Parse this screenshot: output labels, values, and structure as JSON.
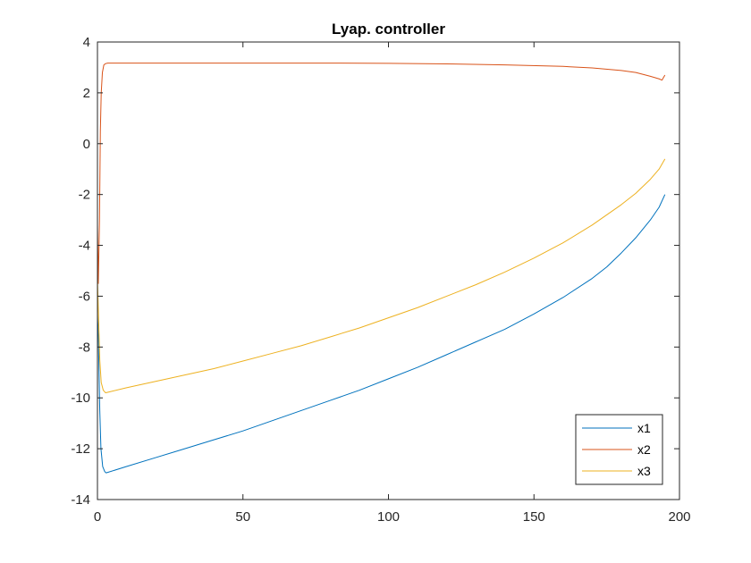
{
  "chart_data": {
    "type": "line",
    "title": "Lyap. controller",
    "xlabel": "",
    "ylabel": "",
    "xlim": [
      0,
      200
    ],
    "ylim": [
      -14,
      4
    ],
    "xticks": [
      0,
      50,
      100,
      150,
      200
    ],
    "yticks": [
      -14,
      -12,
      -10,
      -8,
      -6,
      -4,
      -2,
      0,
      2,
      4
    ],
    "xtick_labels": [
      "0",
      "50",
      "100",
      "150",
      "200"
    ],
    "ytick_labels": [
      "-14",
      "-12",
      "-10",
      "-8",
      "-6",
      "-4",
      "-2",
      "0",
      "2",
      "4"
    ],
    "grid": false,
    "legend_position": "bottom-right",
    "series": [
      {
        "name": "x1",
        "color": "#0072BD",
        "x": [
          0,
          0.3,
          0.8,
          1.2,
          1.8,
          2.5,
          3,
          10,
          20,
          30,
          40,
          50,
          60,
          70,
          80,
          90,
          100,
          110,
          120,
          130,
          140,
          150,
          160,
          170,
          175,
          180,
          185,
          190,
          193,
          195
        ],
        "y": [
          -6.7,
          -7.5,
          -10.5,
          -12.0,
          -12.7,
          -12.9,
          -12.95,
          -12.7,
          -12.35,
          -12.0,
          -11.65,
          -11.3,
          -10.9,
          -10.5,
          -10.1,
          -9.7,
          -9.25,
          -8.8,
          -8.3,
          -7.8,
          -7.3,
          -6.7,
          -6.05,
          -5.3,
          -4.85,
          -4.3,
          -3.7,
          -3.0,
          -2.5,
          -2.0
        ]
      },
      {
        "name": "x2",
        "color": "#D95319",
        "x": [
          0,
          0.3,
          0.7,
          1.0,
          1.3,
          1.7,
          2.2,
          2.8,
          3.5,
          10,
          30,
          50,
          80,
          100,
          120,
          140,
          160,
          170,
          180,
          185,
          190,
          193,
          194,
          195
        ],
        "y": [
          -3.2,
          -5.5,
          -3.0,
          0.5,
          2.0,
          2.8,
          3.1,
          3.15,
          3.17,
          3.17,
          3.17,
          3.17,
          3.17,
          3.16,
          3.14,
          3.1,
          3.04,
          2.98,
          2.88,
          2.8,
          2.65,
          2.55,
          2.5,
          2.7
        ]
      },
      {
        "name": "x3",
        "color": "#EDB120",
        "x": [
          0,
          0.3,
          0.8,
          1.3,
          2.0,
          2.8,
          3.5,
          10,
          20,
          30,
          40,
          50,
          60,
          70,
          80,
          90,
          100,
          110,
          120,
          130,
          140,
          150,
          160,
          170,
          180,
          185,
          190,
          193,
          195
        ],
        "y": [
          -5.3,
          -6.5,
          -8.5,
          -9.4,
          -9.7,
          -9.8,
          -9.78,
          -9.6,
          -9.35,
          -9.1,
          -8.85,
          -8.55,
          -8.25,
          -7.95,
          -7.6,
          -7.25,
          -6.85,
          -6.45,
          -6.0,
          -5.55,
          -5.05,
          -4.5,
          -3.9,
          -3.2,
          -2.4,
          -1.95,
          -1.4,
          -1.0,
          -0.6
        ]
      }
    ]
  }
}
